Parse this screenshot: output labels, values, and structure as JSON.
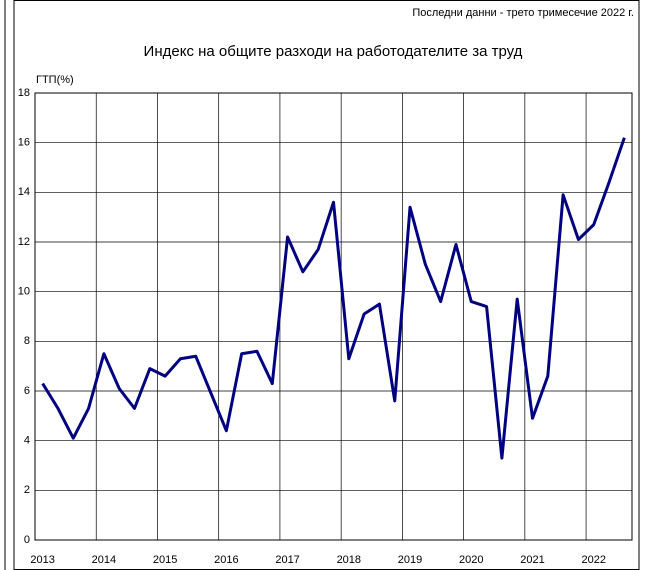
{
  "chart_data": {
    "type": "line",
    "note": "Последни данни - трето тримесечие 2022 г.",
    "title": "Индекс на общите разходи на работодателите за труд",
    "y_label": "ГТП(%)",
    "categories": [
      "2013",
      null,
      null,
      null,
      "2014",
      null,
      null,
      null,
      "2015",
      null,
      null,
      null,
      "2016",
      null,
      null,
      null,
      "2017",
      null,
      null,
      null,
      "2018",
      null,
      null,
      null,
      "2019",
      null,
      null,
      null,
      "2020",
      null,
      null,
      null,
      "2021",
      null,
      null,
      null,
      "2022",
      null,
      null
    ],
    "series": [
      {
        "name": "ГТП",
        "color": "#000080",
        "values": [
          6.3,
          5.3,
          4.1,
          5.3,
          7.5,
          6.1,
          5.3,
          6.9,
          6.6,
          7.3,
          7.4,
          5.9,
          4.4,
          7.5,
          7.6,
          6.3,
          12.2,
          10.8,
          11.7,
          13.6,
          7.3,
          9.1,
          9.5,
          5.6,
          13.4,
          11.1,
          9.6,
          11.9,
          9.6,
          9.4,
          3.3,
          9.7,
          4.9,
          6.6,
          13.9,
          12.1,
          12.7,
          14.4,
          16.2
        ]
      }
    ],
    "ylim": [
      0,
      18
    ],
    "yticks": [
      0,
      2,
      4,
      6,
      8,
      10,
      12,
      14,
      16,
      18
    ],
    "grid": true
  }
}
